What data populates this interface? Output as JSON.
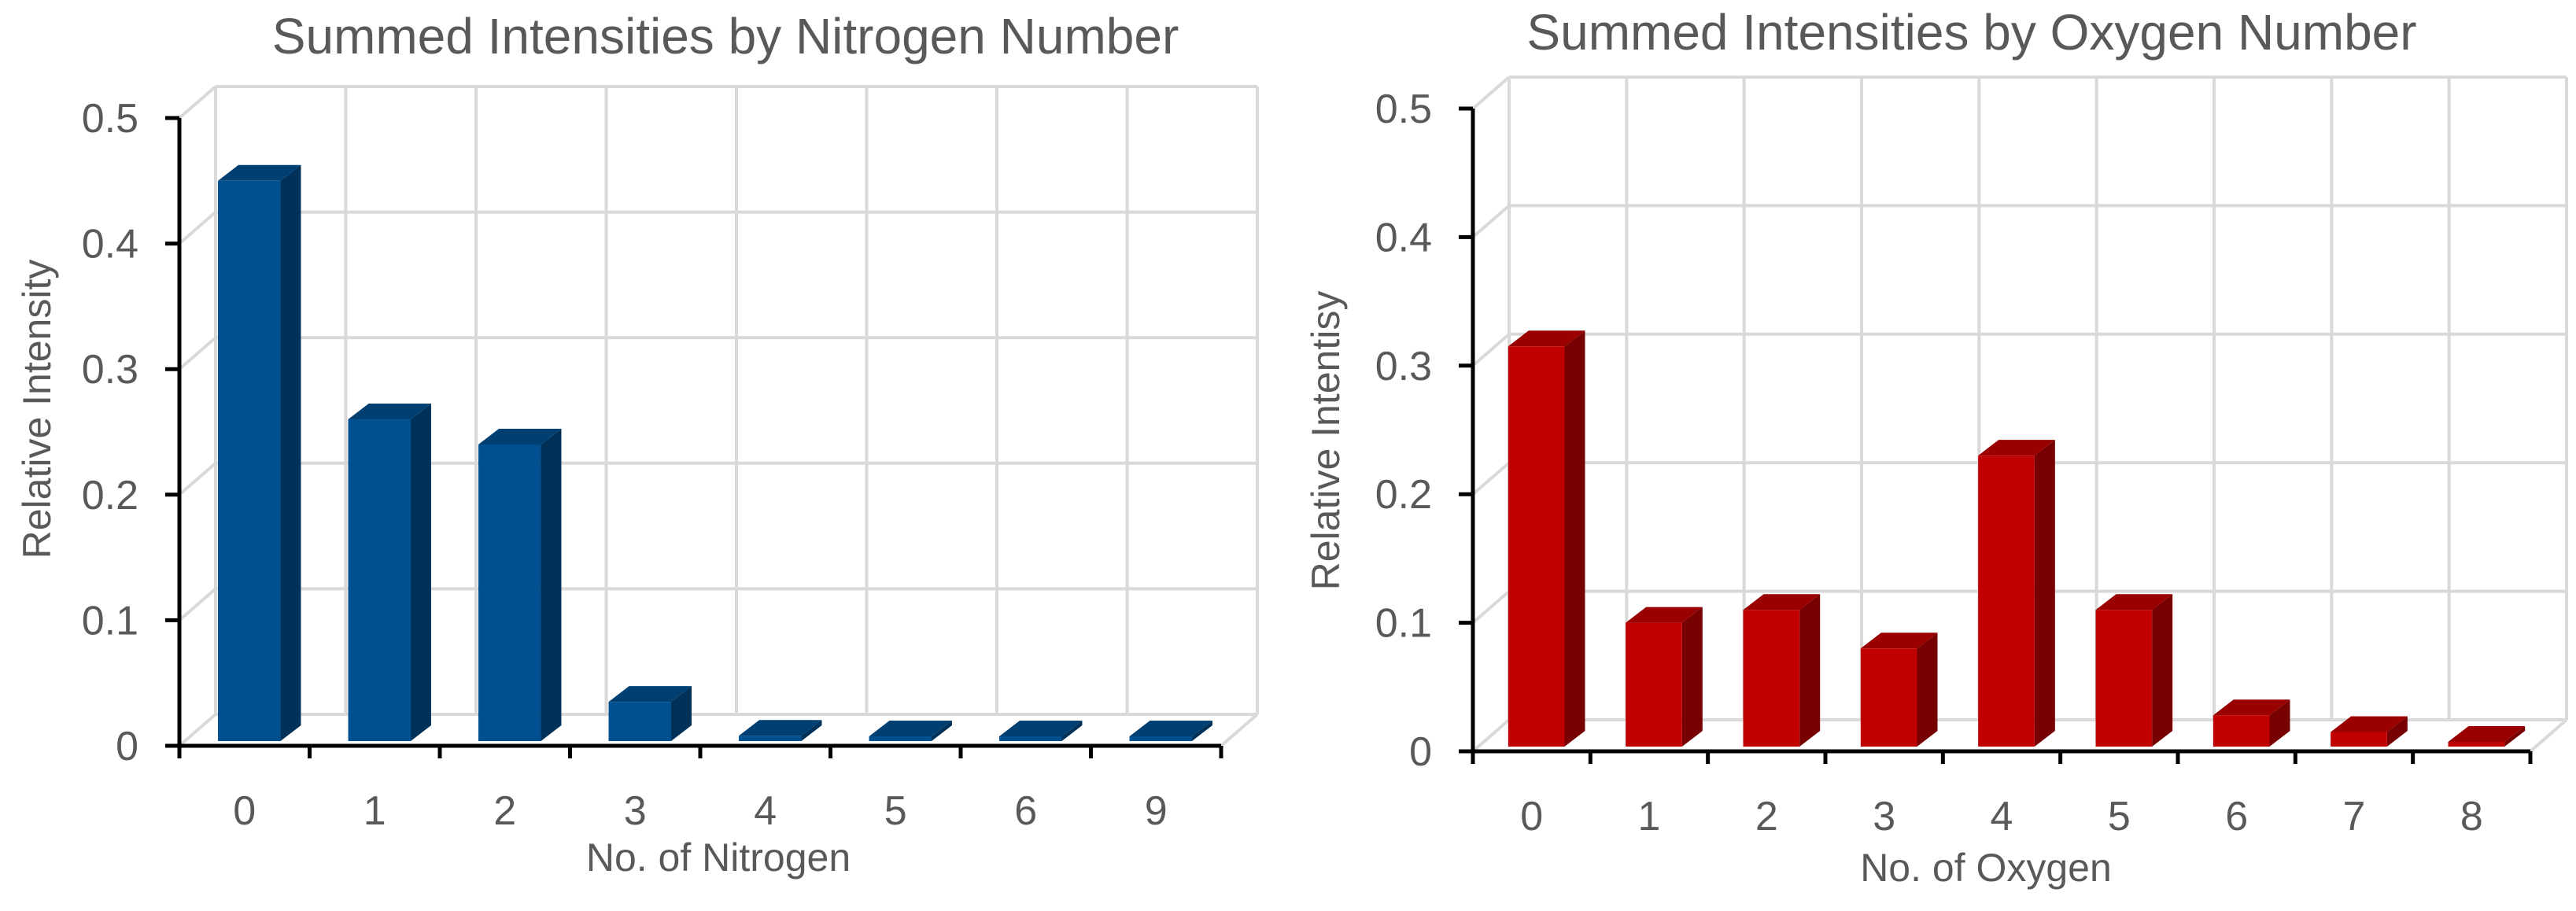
{
  "chart_data": [
    {
      "type": "bar",
      "title": "Summed Intensities by Nitrogen Number",
      "xlabel": "No. of Nitrogen",
      "ylabel": "Relative Intensity",
      "categories": [
        "0",
        "1",
        "2",
        "3",
        "4",
        "5",
        "6",
        "9"
      ],
      "values": [
        0.45,
        0.26,
        0.24,
        0.035,
        0.008,
        0.002,
        0.007,
        0.003
      ],
      "ylim": [
        0,
        0.5
      ],
      "yticks": [
        "0",
        "0.1",
        "0.2",
        "0.3",
        "0.4",
        "0.5"
      ],
      "color": "#004f8f",
      "grid": true,
      "style": "3d-column"
    },
    {
      "type": "bar",
      "title": "Summed Intensities by Oxygen Number",
      "xlabel": "No. of Oxygen",
      "ylabel": "Relative Intentisy",
      "categories": [
        "0",
        "1",
        "2",
        "3",
        "4",
        "5",
        "6",
        "7",
        "8"
      ],
      "values": [
        0.315,
        0.1,
        0.11,
        0.08,
        0.23,
        0.11,
        0.028,
        0.015,
        0.002
      ],
      "ylim": [
        0,
        0.5
      ],
      "yticks": [
        "0",
        "0.1",
        "0.2",
        "0.3",
        "0.4",
        "0.5"
      ],
      "color": "#c00000",
      "grid": true,
      "style": "3d-column"
    }
  ]
}
